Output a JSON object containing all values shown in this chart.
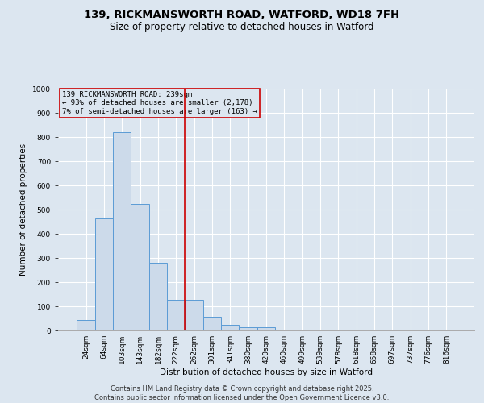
{
  "title_line1": "139, RICKMANSWORTH ROAD, WATFORD, WD18 7FH",
  "title_line2": "Size of property relative to detached houses in Watford",
  "xlabel": "Distribution of detached houses by size in Watford",
  "ylabel": "Number of detached properties",
  "categories": [
    "24sqm",
    "64sqm",
    "103sqm",
    "143sqm",
    "182sqm",
    "222sqm",
    "262sqm",
    "301sqm",
    "341sqm",
    "380sqm",
    "420sqm",
    "460sqm",
    "499sqm",
    "539sqm",
    "578sqm",
    "618sqm",
    "658sqm",
    "697sqm",
    "737sqm",
    "776sqm",
    "816sqm"
  ],
  "values": [
    45,
    465,
    820,
    525,
    280,
    128,
    128,
    58,
    22,
    12,
    12,
    5,
    2,
    1,
    1,
    1,
    1,
    0,
    0,
    0,
    0
  ],
  "bar_color": "#ccdaea",
  "bar_edge_color": "#5b9bd5",
  "background_color": "#dce6f0",
  "grid_color": "#ffffff",
  "annotation_text": "139 RICKMANSWORTH ROAD: 239sqm\n← 93% of detached houses are smaller (2,178)\n7% of semi-detached houses are larger (163) →",
  "annotation_box_edge_color": "#cc0000",
  "vline_color": "#cc0000",
  "vline_position": 5.5,
  "ylim": [
    0,
    1000
  ],
  "yticks": [
    0,
    100,
    200,
    300,
    400,
    500,
    600,
    700,
    800,
    900,
    1000
  ],
  "footer_line1": "Contains HM Land Registry data © Crown copyright and database right 2025.",
  "footer_line2": "Contains public sector information licensed under the Open Government Licence v3.0.",
  "title_fontsize": 9.5,
  "subtitle_fontsize": 8.5,
  "axis_label_fontsize": 7.5,
  "tick_fontsize": 6.5,
  "annotation_fontsize": 6.5,
  "footer_fontsize": 6.0
}
